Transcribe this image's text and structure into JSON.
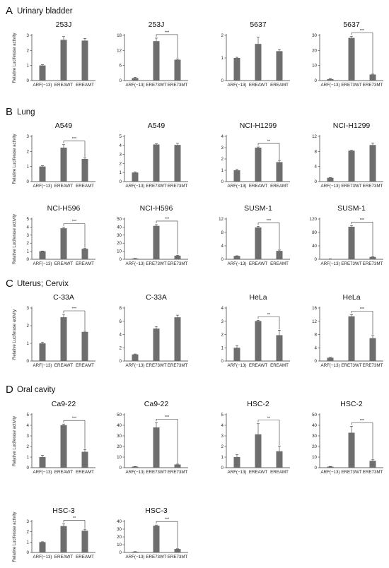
{
  "colors": {
    "bar": "#6e6e6e",
    "axis": "#333333",
    "text": "#222222"
  },
  "sections": [
    {
      "letter": "A",
      "title": "Urinary bladder"
    },
    {
      "letter": "B",
      "title": "Lung"
    },
    {
      "letter": "C",
      "title": "Uterus; Cervix"
    },
    {
      "letter": "D",
      "title": "Oral cavity"
    }
  ],
  "chart_data": [
    {
      "type": "bar",
      "title": "253J",
      "ylabel": "Relative Luciferase activity",
      "categories": [
        "ARF(−13)",
        "EREAWT",
        "EREAMT"
      ],
      "values": [
        1.0,
        2.7,
        2.65
      ],
      "errors": [
        0.06,
        0.22,
        0.14
      ],
      "ylim": [
        0,
        3
      ],
      "yticks": [
        "0",
        "1",
        "2",
        "3"
      ],
      "sig": ""
    },
    {
      "type": "bar",
      "title": "253J",
      "ylabel": "",
      "categories": [
        "ARF(−13)",
        "ERE73WT",
        "ERE73MT"
      ],
      "values": [
        1.0,
        15.7,
        8.3
      ],
      "errors": [
        0.3,
        1.2,
        0.3
      ],
      "ylim": [
        0,
        18
      ],
      "yticks": [
        "0",
        "6",
        "12",
        "18"
      ],
      "sig": "***"
    },
    {
      "type": "bar",
      "title": "5637",
      "ylabel": "",
      "categories": [
        "ARF(−13)",
        "EREAWT",
        "EREAMT"
      ],
      "values": [
        1.0,
        1.62,
        1.3
      ],
      "errors": [
        0.03,
        0.3,
        0.07
      ],
      "ylim": [
        0,
        2
      ],
      "yticks": [
        "0",
        "1",
        "2"
      ],
      "sig": ""
    },
    {
      "type": "bar",
      "title": "5637",
      "ylabel": "",
      "categories": [
        "ARF(−13)",
        "ERE73WT",
        "ERE73MT"
      ],
      "values": [
        1.0,
        28.3,
        4.0
      ],
      "errors": [
        0.2,
        1.0,
        0.3
      ],
      "ylim": [
        0,
        30
      ],
      "yticks": [
        "0",
        "10",
        "20",
        "30"
      ],
      "sig": "***"
    },
    {
      "type": "bar",
      "title": "A549",
      "ylabel": "Relative Luciferase activity",
      "categories": [
        "ARF(−13)",
        "EREAWT",
        "EREAMT"
      ],
      "values": [
        1.0,
        2.25,
        1.5
      ],
      "errors": [
        0.06,
        0.2,
        0.06
      ],
      "ylim": [
        0,
        3
      ],
      "yticks": [
        "0",
        "1",
        "2",
        "3"
      ],
      "sig": "***"
    },
    {
      "type": "bar",
      "title": "A549",
      "ylabel": "",
      "categories": [
        "ARF(−13)",
        "ERE73WT",
        "ERE73MT"
      ],
      "values": [
        1.0,
        4.1,
        4.05
      ],
      "errors": [
        0.08,
        0.08,
        0.18
      ],
      "ylim": [
        0,
        5
      ],
      "yticks": [
        "0",
        "1",
        "2",
        "3",
        "4",
        "5"
      ],
      "sig": ""
    },
    {
      "type": "bar",
      "title": "NCI-H1299",
      "ylabel": "",
      "categories": [
        "ARF(−13)",
        "EREAWT",
        "EREAMT"
      ],
      "values": [
        1.0,
        3.0,
        1.72
      ],
      "errors": [
        0.08,
        0.06,
        0.15
      ],
      "ylim": [
        0,
        4
      ],
      "yticks": [
        "0",
        "1",
        "2",
        "3",
        "4"
      ],
      "sig": "**"
    },
    {
      "type": "bar",
      "title": "NCI-H1299",
      "ylabel": "",
      "categories": [
        "ARF(−13)",
        "ERE73WT",
        "ERE73MT"
      ],
      "values": [
        1.0,
        8.2,
        9.7
      ],
      "errors": [
        0.08,
        0.12,
        0.55
      ],
      "ylim": [
        0,
        12
      ],
      "yticks": [
        "0",
        "4",
        "8",
        "12"
      ],
      "sig": ""
    },
    {
      "type": "bar",
      "title": "NCI-H596",
      "ylabel": "Relative Luciferase activity",
      "categories": [
        "ARF(−13)",
        "EREAWT",
        "EREAMT"
      ],
      "values": [
        1.0,
        3.85,
        1.3
      ],
      "errors": [
        0.03,
        0.12,
        0.05
      ],
      "ylim": [
        0,
        5
      ],
      "yticks": [
        "0",
        "1",
        "2",
        "3",
        "4",
        "5"
      ],
      "sig": "***"
    },
    {
      "type": "bar",
      "title": "NCI-H596",
      "ylabel": "",
      "categories": [
        "ARF(−13)",
        "ERE73WT",
        "ERE73MT"
      ],
      "values": [
        1.0,
        41.5,
        4.5
      ],
      "errors": [
        0.1,
        1.5,
        0.4
      ],
      "ylim": [
        0,
        50
      ],
      "yticks": [
        "0",
        "10",
        "20",
        "30",
        "40",
        "50"
      ],
      "sig": "***"
    },
    {
      "type": "bar",
      "title": "SUSM-1",
      "ylabel": "",
      "categories": [
        "ARF(−13)",
        "EREAWT",
        "EREAMT"
      ],
      "values": [
        1.0,
        9.5,
        2.5
      ],
      "errors": [
        0.05,
        0.3,
        0.25
      ],
      "ylim": [
        0,
        12
      ],
      "yticks": [
        "0",
        "4",
        "8",
        "12"
      ],
      "sig": "***"
    },
    {
      "type": "bar",
      "title": "SUSM-1",
      "ylabel": "",
      "categories": [
        "ARF(−13)",
        "ERE73WT",
        "ERE73MT"
      ],
      "values": [
        1.0,
        97,
        7
      ],
      "errors": [
        0.3,
        3.5,
        1.0
      ],
      "ylim": [
        0,
        120
      ],
      "yticks": [
        "0",
        "40",
        "80",
        "120"
      ],
      "sig": "***"
    },
    {
      "type": "bar",
      "title": "C-33A",
      "ylabel": "Relative Luciferase activity",
      "categories": [
        "ARF(−13)",
        "EREAWT",
        "EREAMT"
      ],
      "values": [
        1.0,
        2.48,
        1.65
      ],
      "errors": [
        0.07,
        0.16,
        0.05
      ],
      "ylim": [
        0,
        3
      ],
      "yticks": [
        "0",
        "1",
        "2",
        "3"
      ],
      "sig": "***"
    },
    {
      "type": "bar",
      "title": "C-33A",
      "ylabel": "",
      "categories": [
        "ARF(−13)",
        "ERE73WT",
        "ERE73MT"
      ],
      "values": [
        1.0,
        4.9,
        6.6
      ],
      "errors": [
        0.06,
        0.3,
        0.32
      ],
      "ylim": [
        0,
        8
      ],
      "yticks": [
        "0",
        "2",
        "4",
        "6",
        "8"
      ],
      "sig": ""
    },
    {
      "type": "bar",
      "title": "HeLa",
      "ylabel": "",
      "categories": [
        "ARF(−13)",
        "EREAWT",
        "EREAMT"
      ],
      "values": [
        1.0,
        3.02,
        1.95
      ],
      "errors": [
        0.17,
        0.06,
        0.38
      ],
      "ylim": [
        0,
        4
      ],
      "yticks": [
        "0",
        "1",
        "2",
        "3",
        "4"
      ],
      "sig": "**"
    },
    {
      "type": "bar",
      "title": "HeLa",
      "ylabel": "",
      "categories": [
        "ARF(−13)",
        "ERE73WT",
        "ERE73MT"
      ],
      "values": [
        1.0,
        13.5,
        6.9
      ],
      "errors": [
        0.1,
        0.5,
        0.8
      ],
      "ylim": [
        0,
        16
      ],
      "yticks": [
        "0",
        "4",
        "8",
        "12",
        "16"
      ],
      "sig": "***"
    },
    {
      "type": "bar",
      "title": "Ca9-22",
      "ylabel": "Relative Luciferase activity",
      "categories": [
        "ARF(−13)",
        "EREAWT",
        "EREAMT"
      ],
      "values": [
        1.0,
        4.02,
        1.5
      ],
      "errors": [
        0.18,
        0.1,
        0.2
      ],
      "ylim": [
        0,
        5
      ],
      "yticks": [
        "0",
        "1",
        "2",
        "3",
        "4",
        "5"
      ],
      "sig": "***"
    },
    {
      "type": "bar",
      "title": "Ca9-22",
      "ylabel": "",
      "categories": [
        "ARF(−13)",
        "ERE73WT",
        "ERE73MT"
      ],
      "values": [
        1.0,
        38,
        3
      ],
      "errors": [
        0.1,
        4.5,
        0.4
      ],
      "ylim": [
        0,
        50
      ],
      "yticks": [
        "0",
        "10",
        "20",
        "30",
        "40",
        "50"
      ],
      "sig": "***"
    },
    {
      "type": "bar",
      "title": "HSC-2",
      "ylabel": "",
      "categories": [
        "ARF(−13)",
        "EREAWT",
        "EREAMT"
      ],
      "values": [
        1.0,
        3.15,
        1.55
      ],
      "errors": [
        0.22,
        1.0,
        0.5
      ],
      "ylim": [
        0,
        5
      ],
      "yticks": [
        "0",
        "1",
        "2",
        "3",
        "4",
        "5"
      ],
      "sig": "**"
    },
    {
      "type": "bar",
      "title": "HSC-2",
      "ylabel": "",
      "categories": [
        "ARF(−13)",
        "ERE73WT",
        "ERE73MT"
      ],
      "values": [
        1.0,
        33,
        6.5
      ],
      "errors": [
        0.2,
        6.0,
        1.0
      ],
      "ylim": [
        0,
        50
      ],
      "yticks": [
        "0",
        "10",
        "20",
        "30",
        "40",
        "50"
      ],
      "sig": "***"
    },
    {
      "type": "bar",
      "title": "HSC-3",
      "ylabel": "Relative Luciferase activity",
      "categories": [
        "ARF(−13)",
        "EREAWT",
        "EREAMT"
      ],
      "values": [
        1.0,
        2.55,
        2.1
      ],
      "errors": [
        0.03,
        0.2,
        0.14
      ],
      "ylim": [
        0,
        3
      ],
      "yticks": [
        "0",
        "1",
        "2",
        "3"
      ],
      "sig": "**"
    },
    {
      "type": "bar",
      "title": "HSC-3",
      "ylabel": "",
      "categories": [
        "ARF(−13)",
        "ERE73WT",
        "ERE73MT"
      ],
      "values": [
        1.0,
        34.5,
        4.5
      ],
      "errors": [
        0.1,
        0.8,
        0.25
      ],
      "ylim": [
        0,
        40
      ],
      "yticks": [
        "0",
        "10",
        "20",
        "30",
        "40"
      ],
      "sig": "***"
    }
  ]
}
